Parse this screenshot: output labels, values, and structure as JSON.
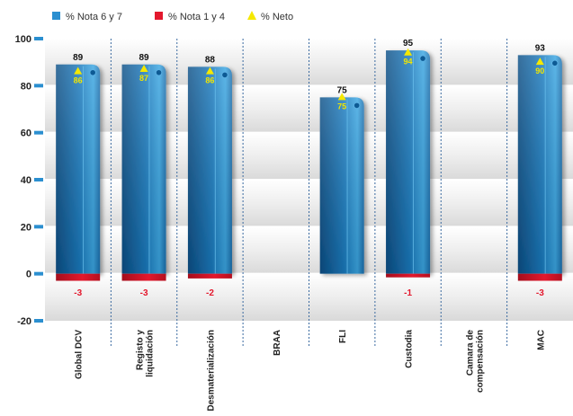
{
  "chart_data": {
    "type": "bar",
    "categories": [
      "Global DCV",
      "Registo y liquidación",
      "Desmaterialización",
      "BRAA",
      "FLI",
      "Custodia",
      "Camara de compensación",
      "MAC"
    ],
    "category_lines": [
      [
        "Global DCV"
      ],
      [
        "Registo y",
        "liquidación"
      ],
      [
        "Desmaterialización"
      ],
      [
        "BRAA"
      ],
      [
        "FLI"
      ],
      [
        "Custodia"
      ],
      [
        "Camara de",
        "compensación"
      ],
      [
        "MAC"
      ]
    ],
    "series": [
      {
        "name": "% Nota 6 y 7",
        "values": [
          89,
          89,
          88,
          null,
          75,
          95,
          null,
          93
        ],
        "color": "#2b8fd0"
      },
      {
        "name": "% Nota 1 y 4",
        "values": [
          -3,
          -3,
          -2,
          null,
          null,
          -1,
          null,
          -3
        ],
        "color": "#e3182d"
      },
      {
        "name": "% Neto",
        "values": [
          86,
          87,
          86,
          null,
          75,
          94,
          null,
          90
        ],
        "color": "#f5e800"
      }
    ],
    "y_ticks": [
      -20,
      0,
      20,
      40,
      60,
      80,
      100
    ],
    "ylim": [
      -20,
      100
    ],
    "grid": true,
    "legend_position": "top-left",
    "title": "",
    "xlabel": "",
    "ylabel": ""
  }
}
